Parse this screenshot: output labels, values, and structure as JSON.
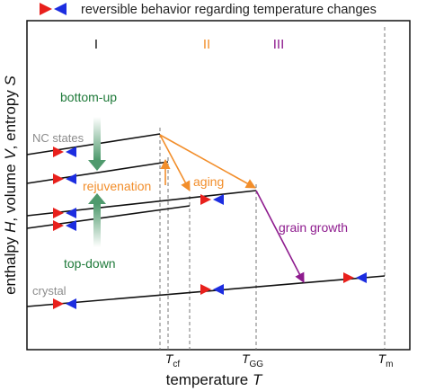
{
  "legend": {
    "text": "reversible behavior regarding temperature changes",
    "icon": "red-blue-arrow-pair-icon"
  },
  "regions": [
    {
      "label": "I",
      "color": "#111111"
    },
    {
      "label": "II",
      "color": "#f28e2b"
    },
    {
      "label": "III",
      "color": "#8e1b8e"
    }
  ],
  "axes": {
    "ylabel_parts": [
      "enthalpy ",
      "H",
      ", volume ",
      "V",
      ", entropy ",
      "S"
    ],
    "xlabel_parts": [
      "temperature ",
      "T"
    ]
  },
  "ticks": [
    {
      "main": "T",
      "sub": "cf"
    },
    {
      "main": "T",
      "sub": "GG"
    },
    {
      "main": "T",
      "sub": "m"
    }
  ],
  "labels": {
    "nc_states": "NC states",
    "crystal": "crystal",
    "bottom_up": "bottom-up",
    "top_down": "top-down",
    "rejuvenation": "rejuvenation",
    "aging": "aging",
    "grain_growth": "grain growth"
  },
  "colors": {
    "orange": "#f28e2b",
    "purple": "#8e1b8e",
    "green": "#1f7a3a",
    "gray": "#8c8c8c",
    "red": "#e8201c",
    "blue": "#1c2de0"
  }
}
